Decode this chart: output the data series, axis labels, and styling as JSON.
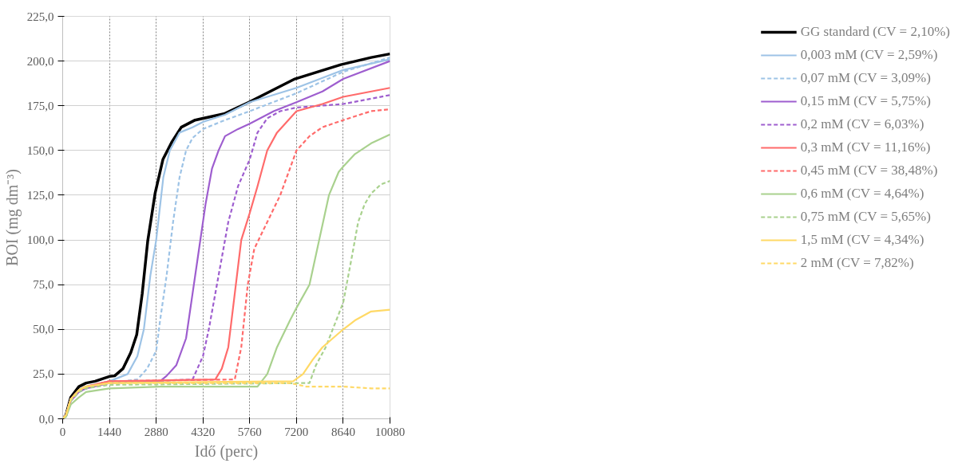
{
  "chart_data": {
    "type": "line",
    "xlabel": "Idő (perc)",
    "ylabel": "BOI (mg dm⁻³)",
    "xlim": [
      0,
      10080
    ],
    "xticks": [
      0,
      1440,
      2880,
      4320,
      5760,
      7200,
      8640,
      10080
    ],
    "ylim": [
      0,
      225
    ],
    "yticks": [
      {
        "value": 0,
        "label": "0,0"
      },
      {
        "value": 25,
        "label": "25,0"
      },
      {
        "value": 50,
        "label": "50,0"
      },
      {
        "value": 75,
        "label": "75,0"
      },
      {
        "value": 100,
        "label": "100,0"
      },
      {
        "value": 125,
        "label": "125,0"
      },
      {
        "value": 150,
        "label": "150,0"
      },
      {
        "value": 175,
        "label": "175,0"
      },
      {
        "value": 200,
        "label": "200,0"
      },
      {
        "value": 225,
        "label": "225,0"
      }
    ],
    "grid": true,
    "legend": "right",
    "marker": "none",
    "series": [
      {
        "name": "GG standard (CV = 2,10%)",
        "color": "#000000",
        "line_style": "solid",
        "x": [
          0,
          100,
          250,
          500,
          720,
          1000,
          1440,
          1600,
          1855,
          2096,
          2280,
          2450,
          2620,
          2846,
          3087,
          3370,
          3653,
          4078,
          4970,
          5735,
          7150,
          8567,
          9500,
          10080
        ],
        "values": [
          0,
          2,
          12,
          18,
          20,
          21,
          23.7,
          24,
          28,
          37,
          47,
          70,
          99.5,
          126,
          145,
          155,
          163,
          167,
          170.5,
          177,
          190,
          198,
          202,
          204
        ]
      },
      {
        "name": "0,003 mM (CV = 2,59%)",
        "color": "#9dc3e6",
        "line_style": "solid",
        "x": [
          0,
          100,
          250,
          500,
          720,
          1440,
          2000,
          2300,
          2500,
          2700,
          2880,
          3100,
          3300,
          3600,
          4000,
          4320,
          5000,
          5760,
          7200,
          8640,
          10080
        ],
        "values": [
          0,
          2,
          11,
          16,
          18,
          21,
          25,
          35,
          50,
          80,
          100,
          135,
          150,
          160,
          163,
          166,
          170,
          177,
          185,
          195,
          201
        ]
      },
      {
        "name": "0,07 mM (CV = 3,09%)",
        "color": "#9dc3e6",
        "line_style": "dashed",
        "x": [
          0,
          100,
          250,
          500,
          720,
          1440,
          2300,
          2600,
          2880,
          3000,
          3200,
          3400,
          3600,
          3800,
          4000,
          4320,
          5000,
          5760,
          7200,
          8640,
          10080
        ],
        "values": [
          0,
          2,
          11,
          15,
          17,
          20,
          22,
          28,
          38,
          55,
          80,
          110,
          135,
          150,
          157,
          162,
          167,
          172,
          182,
          194,
          202
        ]
      },
      {
        "name": "0,15 mM (CV = 5,75%)",
        "color": "#9e5ecf",
        "line_style": "solid",
        "x": [
          0,
          100,
          250,
          500,
          720,
          1440,
          3000,
          3200,
          3500,
          3800,
          4000,
          4200,
          4400,
          4600,
          4800,
          5000,
          5400,
          5760,
          6500,
          7200,
          8000,
          8640,
          10080
        ],
        "values": [
          0,
          2,
          10,
          15,
          17,
          20,
          21,
          24,
          30,
          45,
          70,
          95,
          120,
          140,
          150,
          158,
          162,
          165,
          172,
          177,
          183,
          190,
          200
        ]
      },
      {
        "name": "0,2 mM (CV = 6,03%)",
        "color": "#9e5ecf",
        "line_style": "dashed",
        "x": [
          0,
          100,
          250,
          500,
          720,
          1440,
          4000,
          4320,
          4500,
          4800,
          5100,
          5400,
          5760,
          6000,
          6300,
          6700,
          7200,
          8640,
          10080
        ],
        "values": [
          0,
          2,
          10,
          15,
          17,
          20,
          22,
          35,
          50,
          80,
          110,
          130,
          145,
          160,
          168,
          172,
          174,
          176,
          181
        ]
      },
      {
        "name": "0,3 mM (CV = 11,16%)",
        "color": "#ff6b6b",
        "line_style": "solid",
        "x": [
          0,
          100,
          250,
          500,
          720,
          1440,
          4700,
          4900,
          5100,
          5300,
          5500,
          5760,
          6000,
          6300,
          6600,
          7000,
          7200,
          8000,
          8640,
          10080
        ],
        "values": [
          0,
          2,
          11,
          16,
          18,
          21,
          22,
          28,
          40,
          70,
          100,
          115,
          130,
          150,
          160,
          168,
          172,
          176,
          180,
          185
        ]
      },
      {
        "name": "0,45 mM (CV = 38,48%)",
        "color": "#ff6b6b",
        "line_style": "dashed",
        "x": [
          0,
          100,
          250,
          500,
          720,
          1440,
          5300,
          5500,
          5700,
          5900,
          6300,
          6700,
          7000,
          7200,
          7600,
          8000,
          8640,
          9500,
          10080
        ],
        "values": [
          0,
          2,
          11,
          16,
          18,
          21,
          22,
          40,
          75,
          95,
          110,
          125,
          140,
          150,
          158,
          163,
          167,
          172,
          173
        ]
      },
      {
        "name": "0,6 mM (CV = 4,64%)",
        "color": "#a9d18e",
        "line_style": "solid",
        "x": [
          0,
          100,
          250,
          500,
          720,
          1440,
          3000,
          6000,
          6300,
          6600,
          7000,
          7200,
          7600,
          7900,
          8200,
          8500,
          8640,
          9000,
          9500,
          10080
        ],
        "values": [
          0,
          1,
          8,
          12,
          15,
          17,
          18,
          18,
          25,
          40,
          55,
          62,
          75,
          100,
          125,
          138,
          141,
          148,
          154,
          159
        ]
      },
      {
        "name": "0,75 mM (CV = 5,65%)",
        "color": "#a9d18e",
        "line_style": "dashed",
        "x": [
          0,
          100,
          250,
          500,
          720,
          1440,
          7600,
          7800,
          8100,
          8640,
          8900,
          9100,
          9300,
          9500,
          9800,
          10080
        ],
        "values": [
          0,
          2,
          10,
          15,
          17,
          19,
          20,
          30,
          40,
          65,
          90,
          110,
          120,
          126,
          131,
          133
        ]
      },
      {
        "name": "1,5 mM (CV = 4,34%)",
        "color": "#ffd966",
        "line_style": "solid",
        "x": [
          0,
          100,
          250,
          500,
          720,
          1440,
          7100,
          7400,
          7700,
          8000,
          8640,
          9000,
          9500,
          10080
        ],
        "values": [
          0,
          2,
          11,
          16,
          18,
          20,
          21,
          25,
          33,
          40,
          50,
          55,
          60,
          61
        ]
      },
      {
        "name": "2 mM (CV = 7,82%)",
        "color": "#ffd966",
        "line_style": "dashed",
        "x": [
          0,
          100,
          250,
          500,
          720,
          1440,
          7000,
          7500,
          8640,
          9500,
          10080
        ],
        "values": [
          0,
          2,
          11,
          16,
          18,
          20,
          20,
          18,
          18,
          17,
          17
        ]
      }
    ]
  }
}
